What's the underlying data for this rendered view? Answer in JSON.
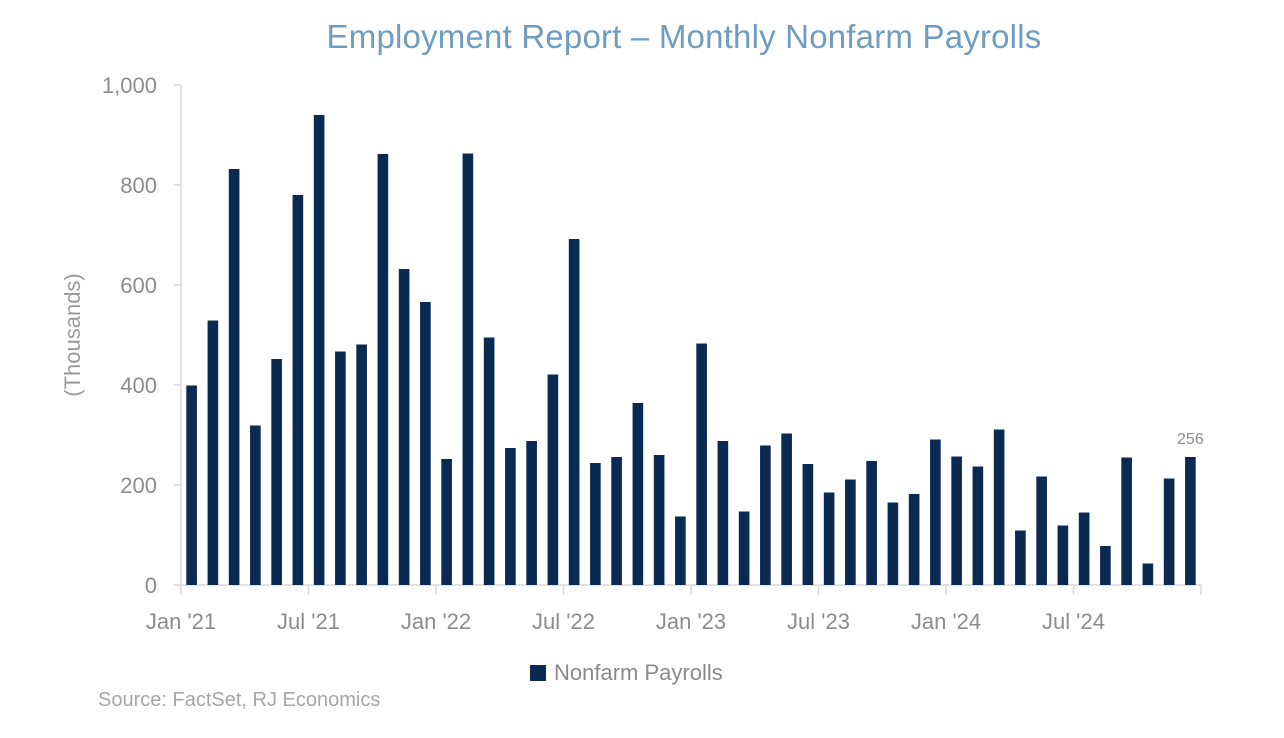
{
  "chart_data": {
    "type": "bar",
    "title": "Employment Report – Monthly Nonfarm Payrolls",
    "ylabel": "(Thousands)",
    "xlabel": "",
    "ylim": [
      0,
      1000
    ],
    "yticks": [
      0,
      200,
      400,
      600,
      800,
      1000
    ],
    "ytick_labels": [
      "0",
      "200",
      "400",
      "600",
      "800",
      "1,000"
    ],
    "grid": false,
    "legend_position": "bottom",
    "xtick_labels": [
      {
        "label": "Jan '21",
        "index": 0
      },
      {
        "label": "Jul '21",
        "index": 6
      },
      {
        "label": "Jan '22",
        "index": 12
      },
      {
        "label": "Jul '22",
        "index": 18
      },
      {
        "label": "Jan '23",
        "index": 24
      },
      {
        "label": "Jul '23",
        "index": 30
      },
      {
        "label": "Jan '24",
        "index": 36
      },
      {
        "label": "Jul '24",
        "index": 42
      }
    ],
    "categories": [
      "Jan 2021",
      "Feb 2021",
      "Mar 2021",
      "Apr 2021",
      "May 2021",
      "Jun 2021",
      "Jul 2021",
      "Aug 2021",
      "Sep 2021",
      "Oct 2021",
      "Nov 2021",
      "Dec 2021",
      "Jan 2022",
      "Feb 2022",
      "Mar 2022",
      "Apr 2022",
      "May 2022",
      "Jun 2022",
      "Jul 2022",
      "Aug 2022",
      "Sep 2022",
      "Oct 2022",
      "Nov 2022",
      "Dec 2022",
      "Jan 2023",
      "Feb 2023",
      "Mar 2023",
      "Apr 2023",
      "May 2023",
      "Jun 2023",
      "Jul 2023",
      "Aug 2023",
      "Sep 2023",
      "Oct 2023",
      "Nov 2023",
      "Dec 2023",
      "Jan 2024",
      "Feb 2024",
      "Mar 2024",
      "Apr 2024",
      "May 2024",
      "Jun 2024",
      "Jul 2024",
      "Aug 2024",
      "Sep 2024",
      "Oct 2024",
      "Nov 2024",
      "Dec 2024"
    ],
    "series": [
      {
        "name": "Nonfarm Payrolls",
        "color": "#0b2a52",
        "values": [
          399,
          529,
          832,
          319,
          452,
          780,
          940,
          467,
          481,
          862,
          632,
          566,
          252,
          863,
          495,
          274,
          288,
          421,
          692,
          244,
          256,
          364,
          260,
          137,
          483,
          288,
          147,
          279,
          303,
          242,
          185,
          211,
          248,
          165,
          182,
          291,
          257,
          237,
          311,
          109,
          217,
          119,
          145,
          78,
          255,
          43,
          213,
          256
        ]
      }
    ],
    "annotations": [
      {
        "text": "256",
        "index": 47
      }
    ]
  },
  "legend": {
    "label": "Nonfarm Payrolls",
    "color": "#0b2a52"
  },
  "source": "Source: FactSet, RJ Economics"
}
